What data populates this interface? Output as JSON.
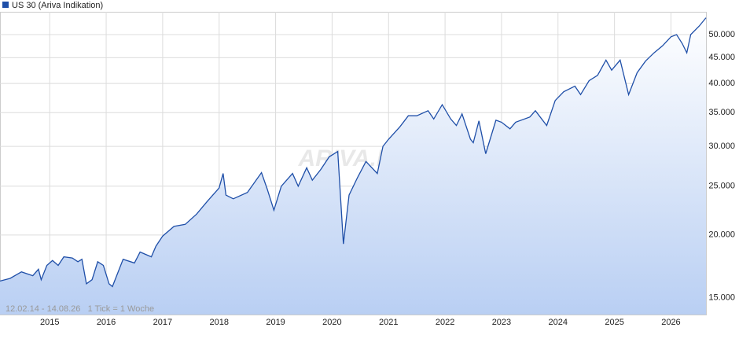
{
  "chart_data": {
    "type": "line",
    "title": "US 30 (Ariva Indikation)",
    "note": "12.02.14 - 14.08.26   1 Tick = 1 Woche",
    "watermark": "ARIVA.DE",
    "log_scale": true,
    "grid": true,
    "xlim": [
      2014.12,
      2026.62
    ],
    "xticks": [
      2015,
      2016,
      2017,
      2018,
      2019,
      2020,
      2021,
      2022,
      2023,
      2024,
      2025,
      2026
    ],
    "ylim": [
      13900,
      55500
    ],
    "yticks": [
      {
        "value": 15000,
        "label": "15.000"
      },
      {
        "value": 20000,
        "label": "20.000"
      },
      {
        "value": 25000,
        "label": "25.000"
      },
      {
        "value": 30000,
        "label": "30.000"
      },
      {
        "value": 35000,
        "label": "35.000"
      },
      {
        "value": 40000,
        "label": "40.000"
      },
      {
        "value": 45000,
        "label": "45.000"
      },
      {
        "value": 50000,
        "label": "50.000"
      }
    ],
    "x": [
      2014.12,
      2014.3,
      2014.5,
      2014.7,
      2014.8,
      2014.85,
      2014.95,
      2015.05,
      2015.15,
      2015.25,
      2015.4,
      2015.5,
      2015.57,
      2015.65,
      2015.75,
      2015.85,
      2015.95,
      2016.05,
      2016.11,
      2016.3,
      2016.5,
      2016.6,
      2016.8,
      2016.88,
      2017.0,
      2017.2,
      2017.4,
      2017.6,
      2017.8,
      2018.0,
      2018.07,
      2018.12,
      2018.25,
      2018.5,
      2018.75,
      2018.85,
      2018.97,
      2019.1,
      2019.3,
      2019.4,
      2019.55,
      2019.65,
      2019.8,
      2019.95,
      2020.1,
      2020.2,
      2020.3,
      2020.45,
      2020.6,
      2020.8,
      2020.9,
      2021.0,
      2021.2,
      2021.35,
      2021.5,
      2021.7,
      2021.8,
      2021.95,
      2022.1,
      2022.2,
      2022.3,
      2022.45,
      2022.5,
      2022.6,
      2022.72,
      2022.9,
      2023.0,
      2023.15,
      2023.25,
      2023.5,
      2023.6,
      2023.8,
      2023.95,
      2024.1,
      2024.3,
      2024.4,
      2024.55,
      2024.7,
      2024.85,
      2024.95,
      2025.1,
      2025.25,
      2025.4,
      2025.55,
      2025.7,
      2025.85,
      2026.0,
      2026.1,
      2026.2,
      2026.28,
      2026.35,
      2026.5,
      2026.62
    ],
    "series": [
      {
        "name": "US 30 (Ariva Indikation)",
        "color": "#1f4fa8",
        "values": [
          16200,
          16400,
          16900,
          16600,
          17100,
          16300,
          17400,
          17800,
          17400,
          18100,
          18000,
          17700,
          17900,
          16000,
          16300,
          17700,
          17400,
          16000,
          15800,
          17900,
          17600,
          18500,
          18100,
          19000,
          19900,
          20800,
          21000,
          22000,
          23400,
          24800,
          26500,
          24000,
          23600,
          24300,
          26600,
          24700,
          22400,
          25000,
          26500,
          25000,
          27200,
          25700,
          27000,
          28600,
          29300,
          19200,
          24000,
          26000,
          28000,
          26500,
          30000,
          31000,
          32800,
          34500,
          34500,
          35300,
          34000,
          36300,
          34000,
          33000,
          34800,
          31000,
          30500,
          33700,
          29000,
          33800,
          33500,
          32500,
          33500,
          34300,
          35300,
          33000,
          37000,
          38500,
          39500,
          38000,
          40500,
          41500,
          44500,
          42500,
          44500,
          38000,
          42000,
          44300,
          46000,
          47500,
          49500,
          50000,
          48000,
          46000,
          50000,
          52000,
          54000
        ]
      }
    ]
  }
}
